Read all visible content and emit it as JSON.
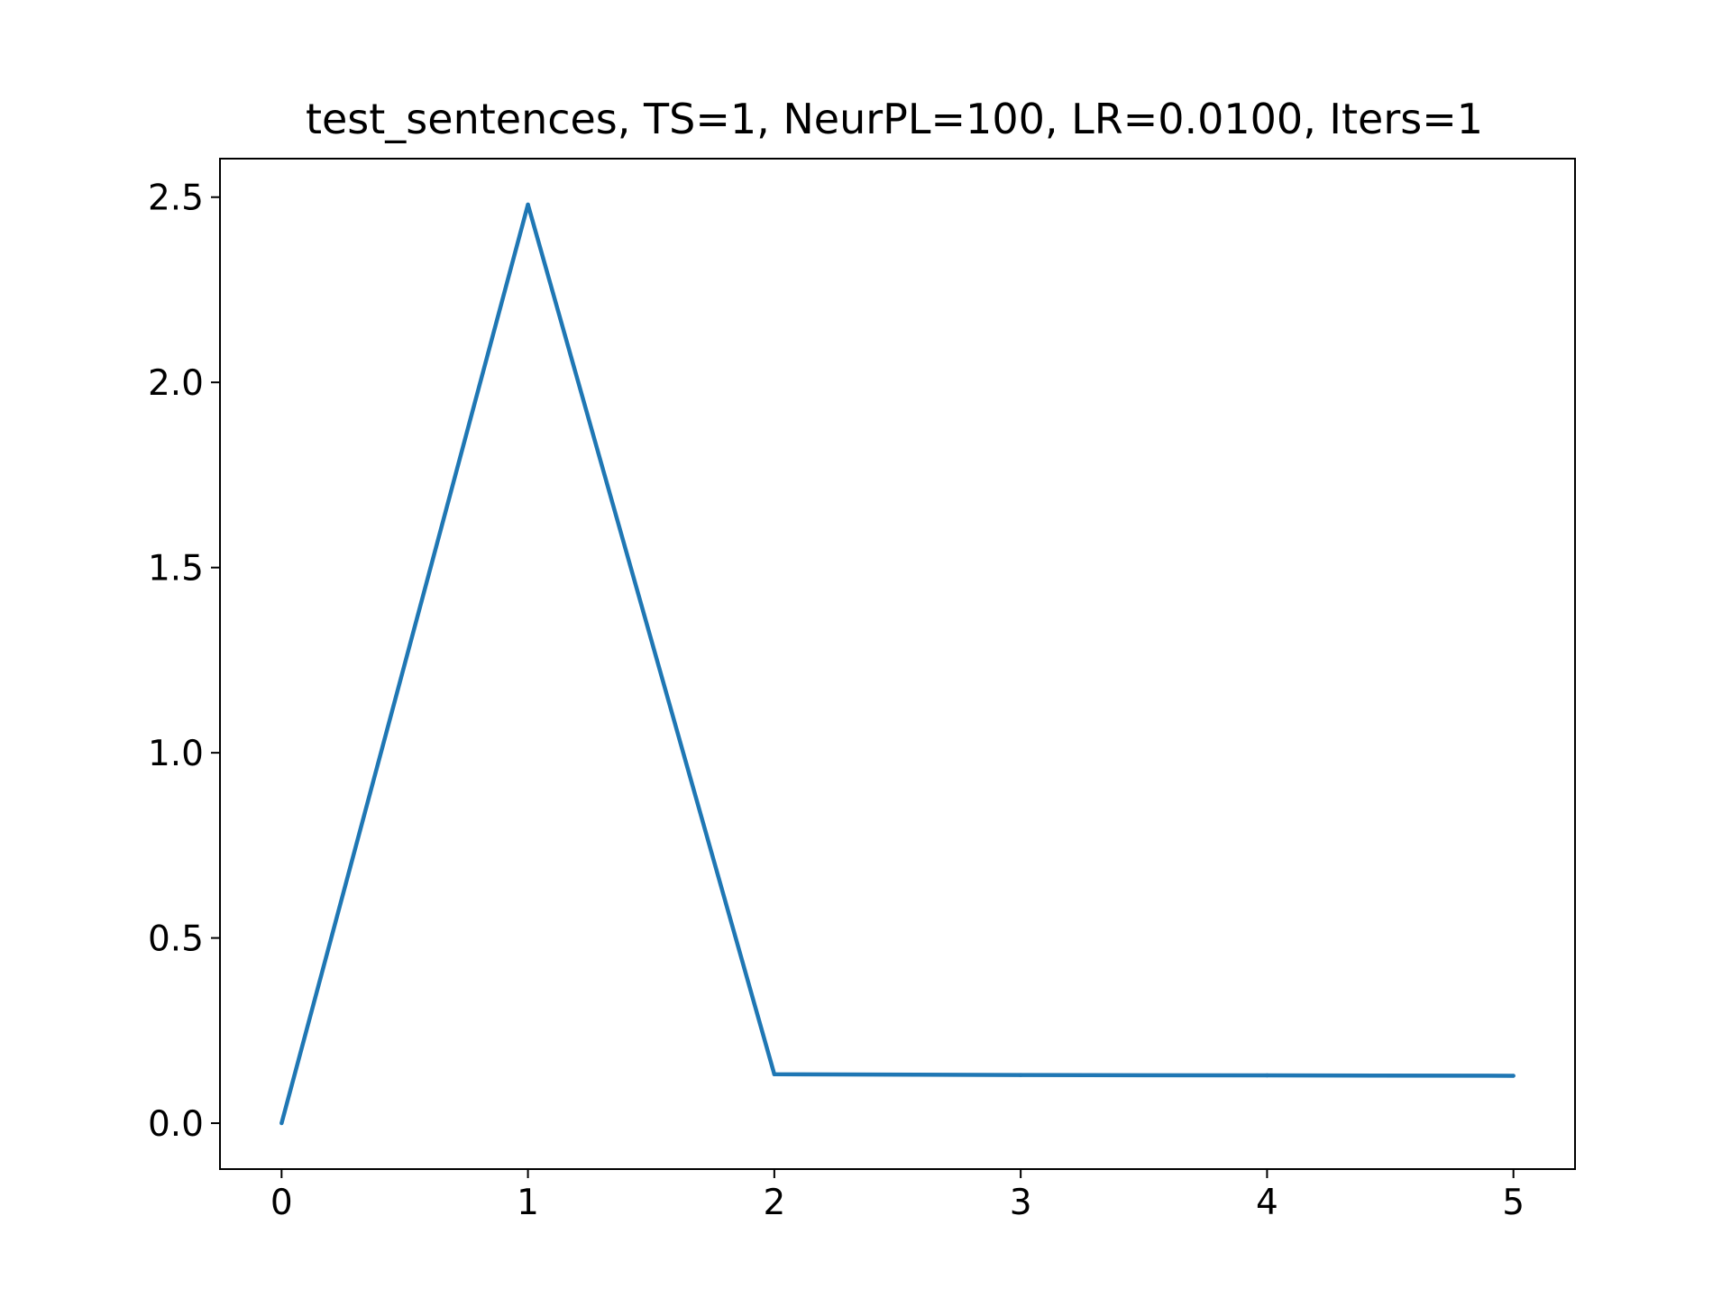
{
  "chart_data": {
    "type": "line",
    "title": "test_sentences, TS=1, NeurPL=100, LR=0.0100, Iters=1",
    "xlabel": "",
    "ylabel": "",
    "x": [
      0,
      1,
      2,
      3,
      4,
      5
    ],
    "series": [
      {
        "values": [
          0.0,
          2.48,
          0.132,
          0.13,
          0.129,
          0.128
        ],
        "color": "#1f77b4"
      }
    ],
    "xlim": [
      -0.25,
      5.25
    ],
    "ylim": [
      -0.124,
      2.604
    ],
    "xticks": [
      0,
      1,
      2,
      3,
      4,
      5
    ],
    "xtick_labels": [
      "0",
      "1",
      "2",
      "3",
      "4",
      "5"
    ],
    "yticks": [
      0.0,
      0.5,
      1.0,
      1.5,
      2.0,
      2.5
    ],
    "ytick_labels": [
      "0.0",
      "0.5",
      "1.0",
      "1.5",
      "2.0",
      "2.5"
    ],
    "grid": false,
    "legend": "none"
  }
}
